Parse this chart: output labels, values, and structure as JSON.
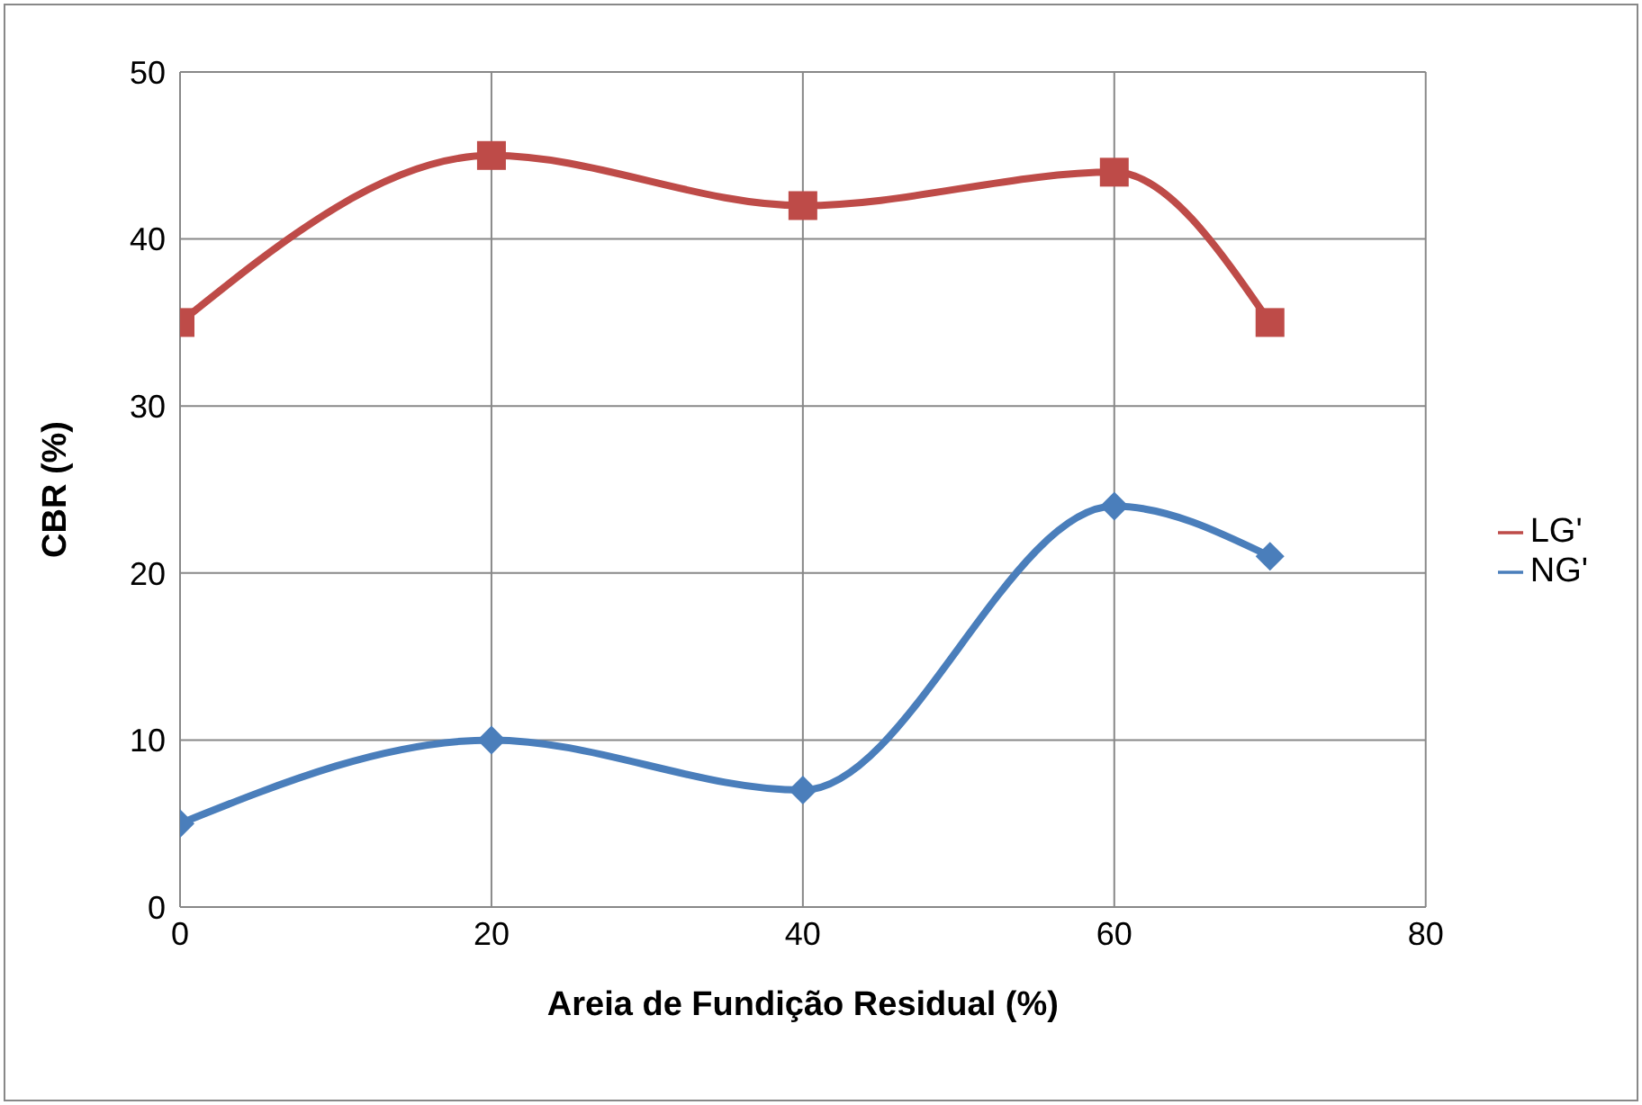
{
  "chart_data": {
    "type": "line",
    "xlabel": "Areia de Fundição Residual (%)",
    "ylabel": "CBR (%)",
    "x": [
      0,
      20,
      40,
      60,
      70
    ],
    "series": [
      {
        "name": "NG'",
        "color": "#4a7ebb",
        "marker": "diamond",
        "values": [
          5,
          10,
          7,
          24,
          21
        ]
      },
      {
        "name": "LG'",
        "color": "#be4b48",
        "marker": "square",
        "values": [
          35,
          45,
          42,
          44,
          35
        ]
      }
    ],
    "xlim": [
      0,
      80
    ],
    "xticks": [
      0,
      20,
      40,
      60,
      80
    ],
    "ylim": [
      0,
      50
    ],
    "yticks": [
      0,
      10,
      20,
      30,
      40,
      50
    ],
    "grid": true,
    "legend": "right"
  }
}
